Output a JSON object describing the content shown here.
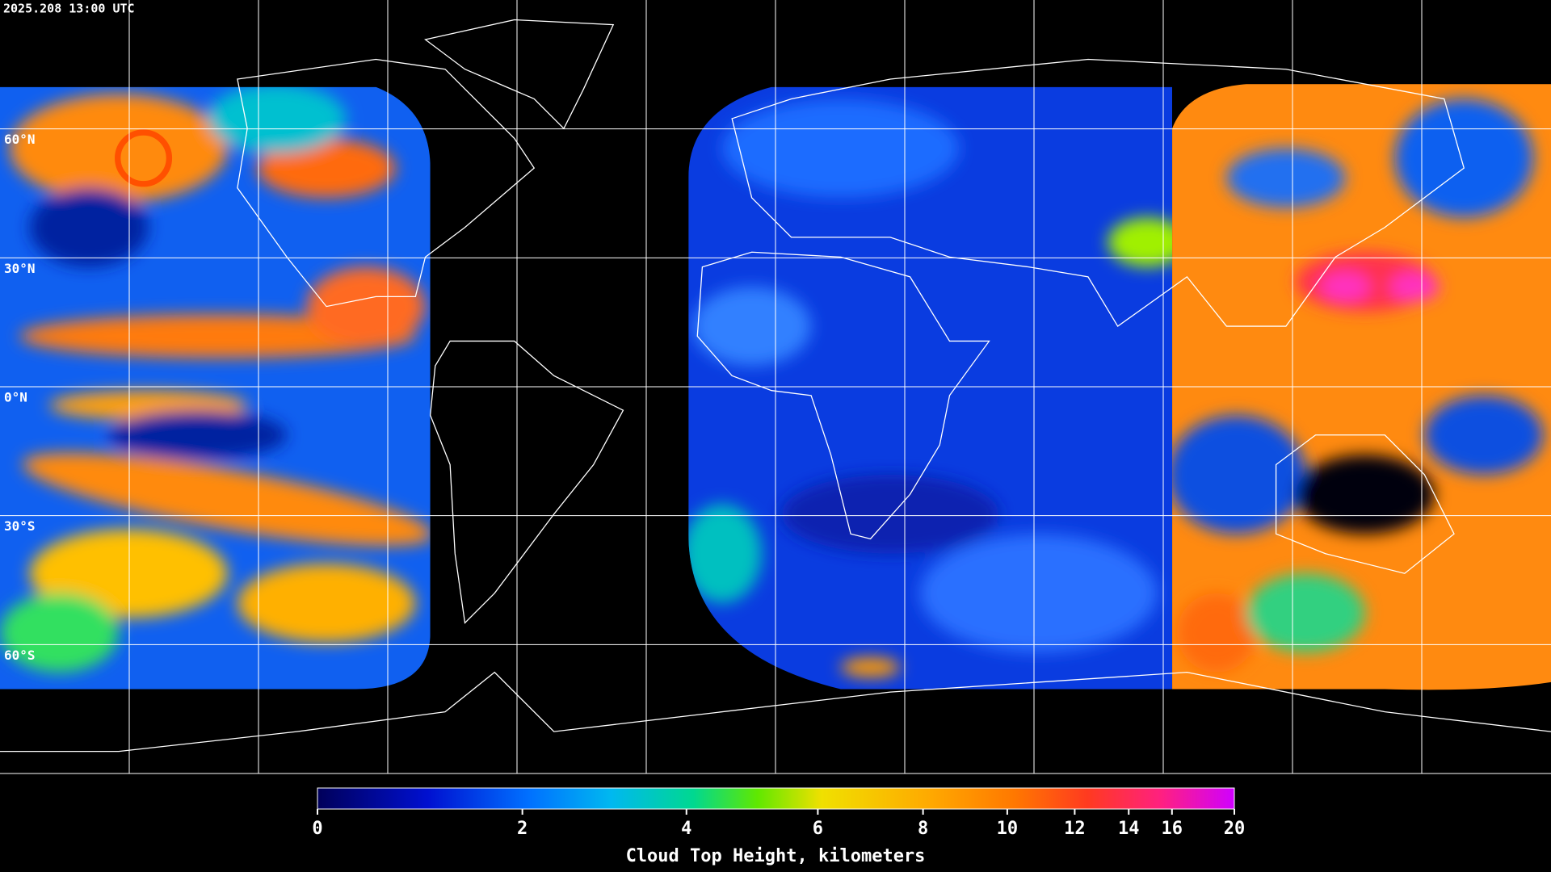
{
  "header": {
    "timestamp": "2025.208 13:00 UTC"
  },
  "map": {
    "latitude_labels": [
      "60°N",
      "30°N",
      "0°N",
      "30°S",
      "60°S"
    ]
  },
  "colorbar": {
    "title": "Cloud Top Height, kilometers",
    "range": [
      0,
      20
    ],
    "ticks": [
      0,
      2,
      4,
      6,
      8,
      10,
      12,
      14,
      16,
      20
    ]
  }
}
